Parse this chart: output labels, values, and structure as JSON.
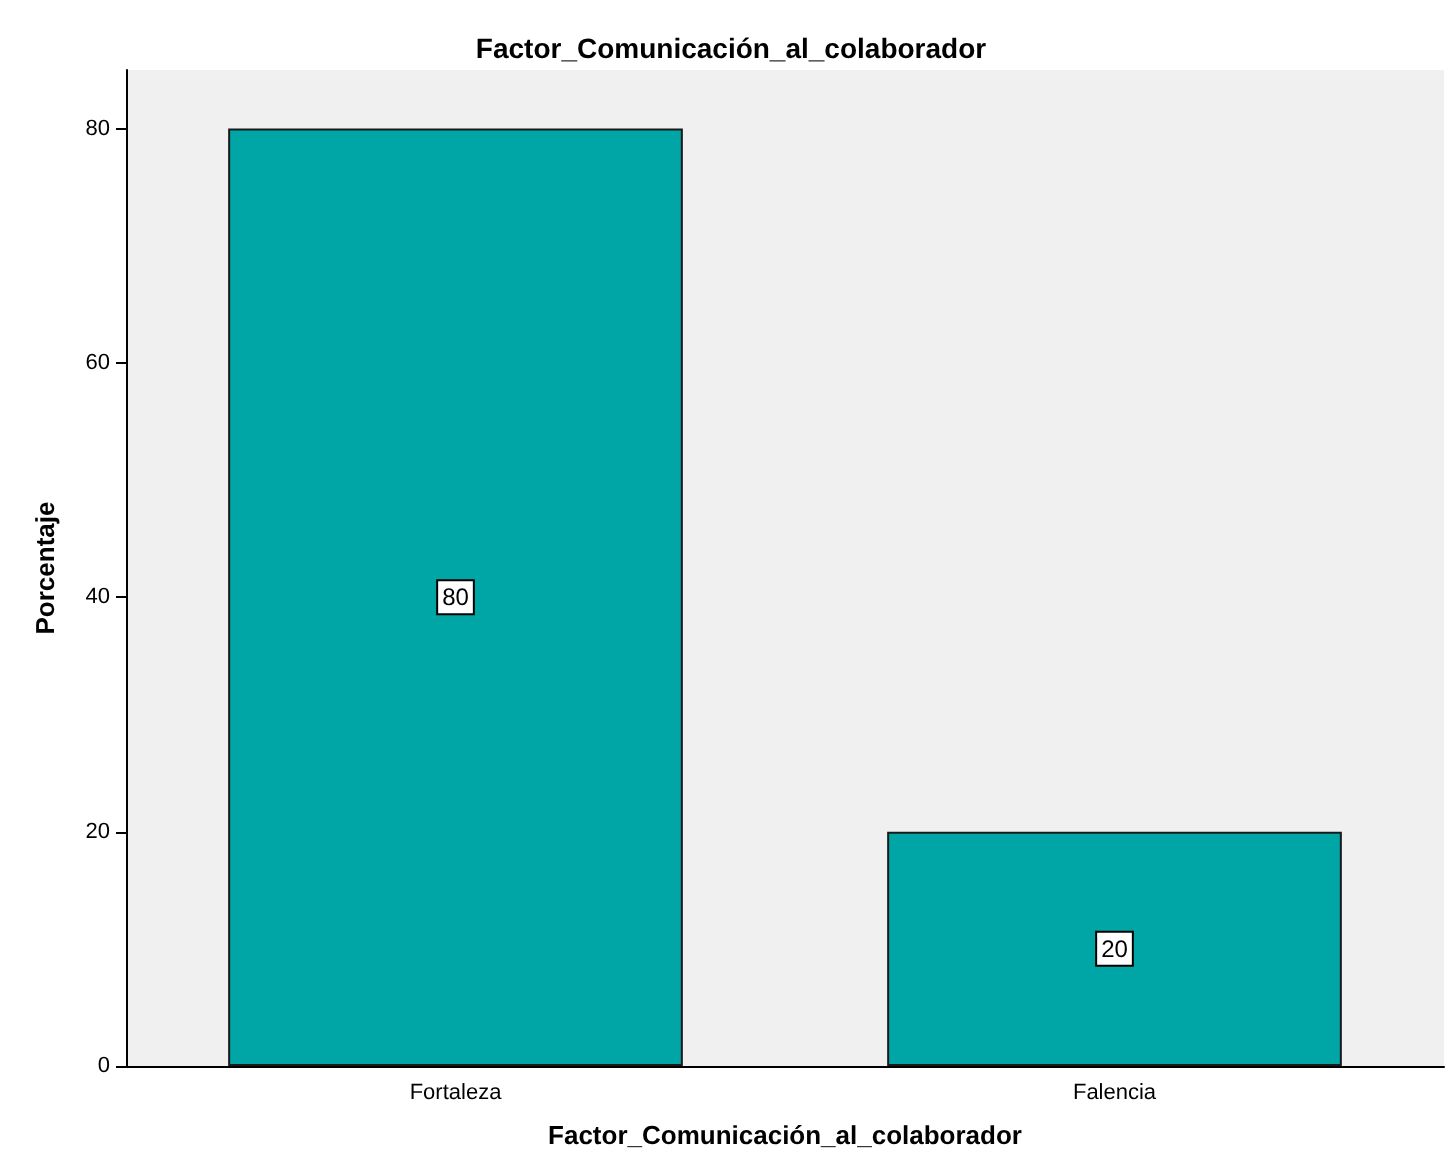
{
  "chart_data": {
    "type": "bar",
    "title": "Factor_Comunicación_al_colaborador",
    "xlabel": "Factor_Comunicación_al_colaborador",
    "ylabel": "Porcentaje",
    "categories": [
      "Fortaleza",
      "Falencia"
    ],
    "values": [
      80,
      20
    ],
    "color": "#00a5a5",
    "ylim": [
      0,
      85
    ],
    "yticks": [
      0,
      20,
      40,
      60,
      80
    ],
    "grid": false,
    "data_labels": true
  }
}
